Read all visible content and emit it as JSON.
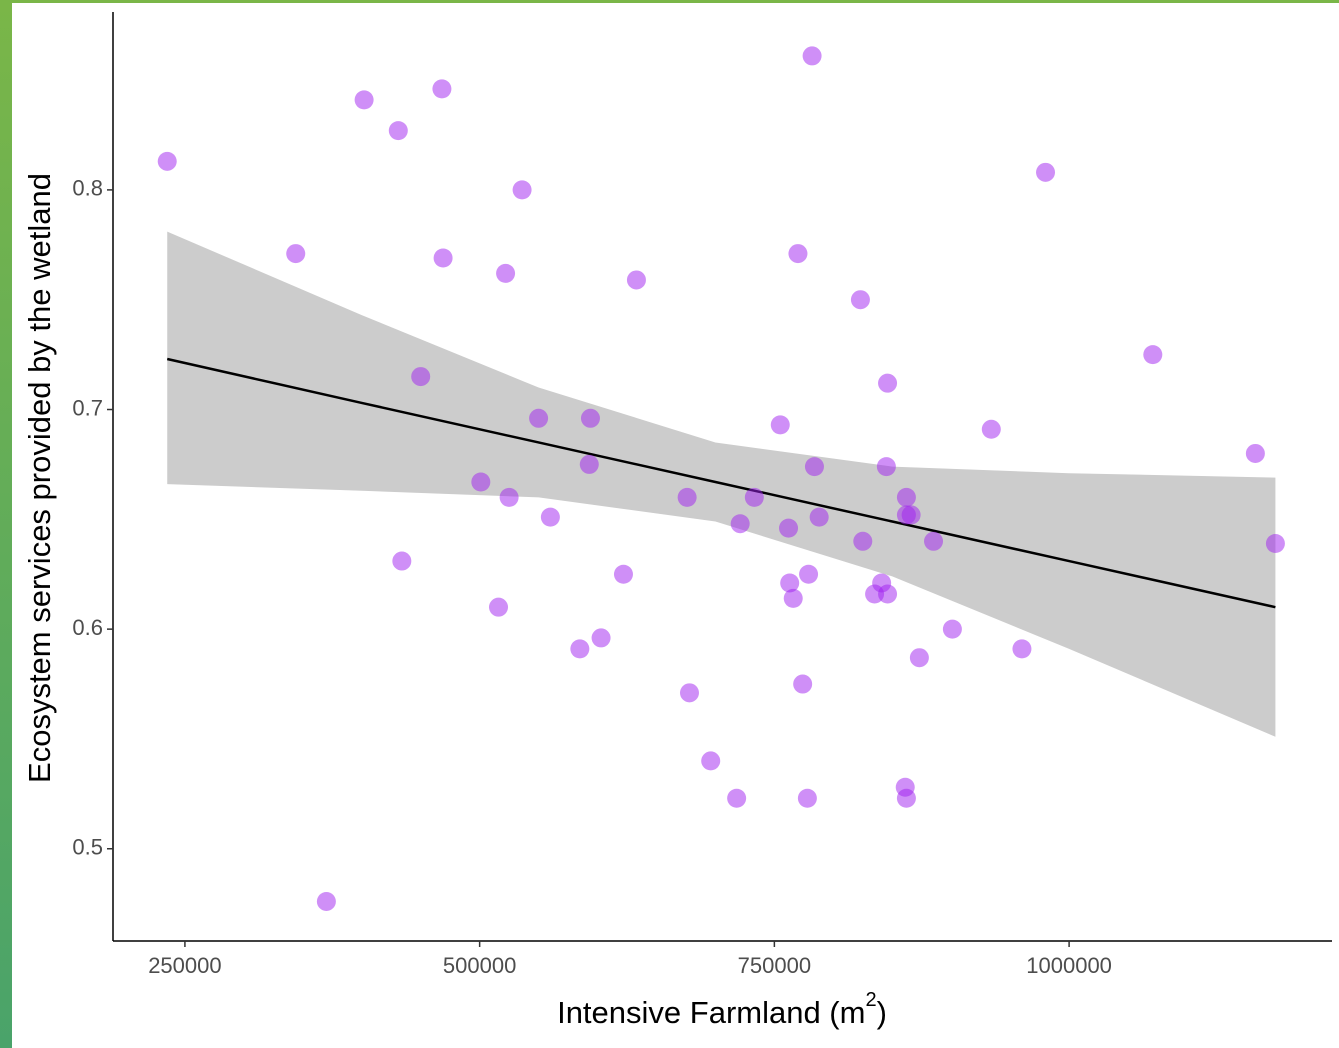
{
  "chart_data": {
    "type": "scatter",
    "x_label": {
      "text": "Intensive Farmland (m",
      "superscript": "2",
      "suffix": ")"
    },
    "y_label": "Ecosystem services provided by the wetland",
    "xlim": [
      189000,
      1223000
    ],
    "ylim": [
      0.458,
      0.881
    ],
    "xticks": [
      250000,
      500000,
      750000,
      1000000
    ],
    "yticks": [
      0.5,
      0.6,
      0.7,
      0.8
    ],
    "point_color": "#a020f0",
    "line_color": "#000000",
    "band_color": "#cccccc",
    "x": [
      235000,
      344000,
      402000,
      431000,
      468000,
      469000,
      536000,
      522000,
      633000,
      782000,
      770000,
      823000,
      980000,
      1071000,
      846000,
      450000,
      550000,
      594000,
      755000,
      934000,
      1158000,
      593000,
      784000,
      845000,
      501000,
      525000,
      676000,
      733000,
      862000,
      560000,
      721000,
      762000,
      788000,
      825000,
      862000,
      866000,
      885000,
      1175000,
      434000,
      622000,
      779000,
      763000,
      841000,
      766000,
      835000,
      846000,
      516000,
      901000,
      603000,
      585000,
      960000,
      873000,
      678000,
      774000,
      696000,
      718000,
      778000,
      861000,
      862000,
      370000
    ],
    "y": [
      0.813,
      0.771,
      0.841,
      0.827,
      0.846,
      0.769,
      0.8,
      0.762,
      0.759,
      0.861,
      0.771,
      0.75,
      0.808,
      0.725,
      0.712,
      0.715,
      0.696,
      0.696,
      0.693,
      0.691,
      0.68,
      0.675,
      0.674,
      0.674,
      0.667,
      0.66,
      0.66,
      0.66,
      0.66,
      0.651,
      0.648,
      0.646,
      0.651,
      0.64,
      0.652,
      0.652,
      0.64,
      0.639,
      0.631,
      0.625,
      0.625,
      0.621,
      0.621,
      0.614,
      0.616,
      0.616,
      0.61,
      0.6,
      0.596,
      0.591,
      0.591,
      0.587,
      0.571,
      0.575,
      0.54,
      0.523,
      0.523,
      0.528,
      0.523,
      0.476
    ],
    "fit": {
      "x": [
        235000,
        400000,
        550000,
        700000,
        850000,
        1000000,
        1175000
      ],
      "y": [
        0.723,
        0.703,
        0.685,
        0.667,
        0.649,
        0.631,
        0.61
      ],
      "upper": [
        0.781,
        0.743,
        0.71,
        0.685,
        0.674,
        0.671,
        0.669
      ],
      "lower": [
        0.666,
        0.663,
        0.66,
        0.649,
        0.624,
        0.591,
        0.551
      ]
    }
  }
}
